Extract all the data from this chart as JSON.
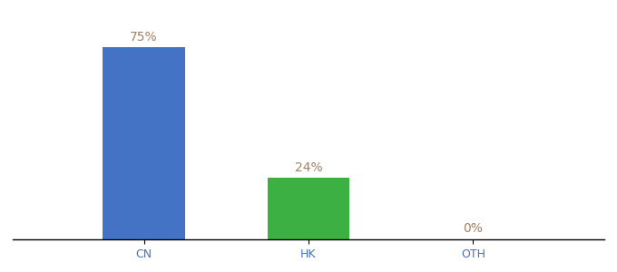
{
  "categories": [
    "CN",
    "HK",
    "OTH"
  ],
  "values": [
    75,
    24,
    0
  ],
  "bar_colors": [
    "#4472C4",
    "#3CB043",
    "#4472C4"
  ],
  "annotation_color": "#a08060",
  "tick_color": "#4472C4",
  "annotations": [
    "75%",
    "24%",
    "0%"
  ],
  "background_color": "#ffffff",
  "ylim": [
    0,
    85
  ],
  "bar_width": 0.5,
  "annotation_fontsize": 10,
  "tick_fontsize": 9
}
